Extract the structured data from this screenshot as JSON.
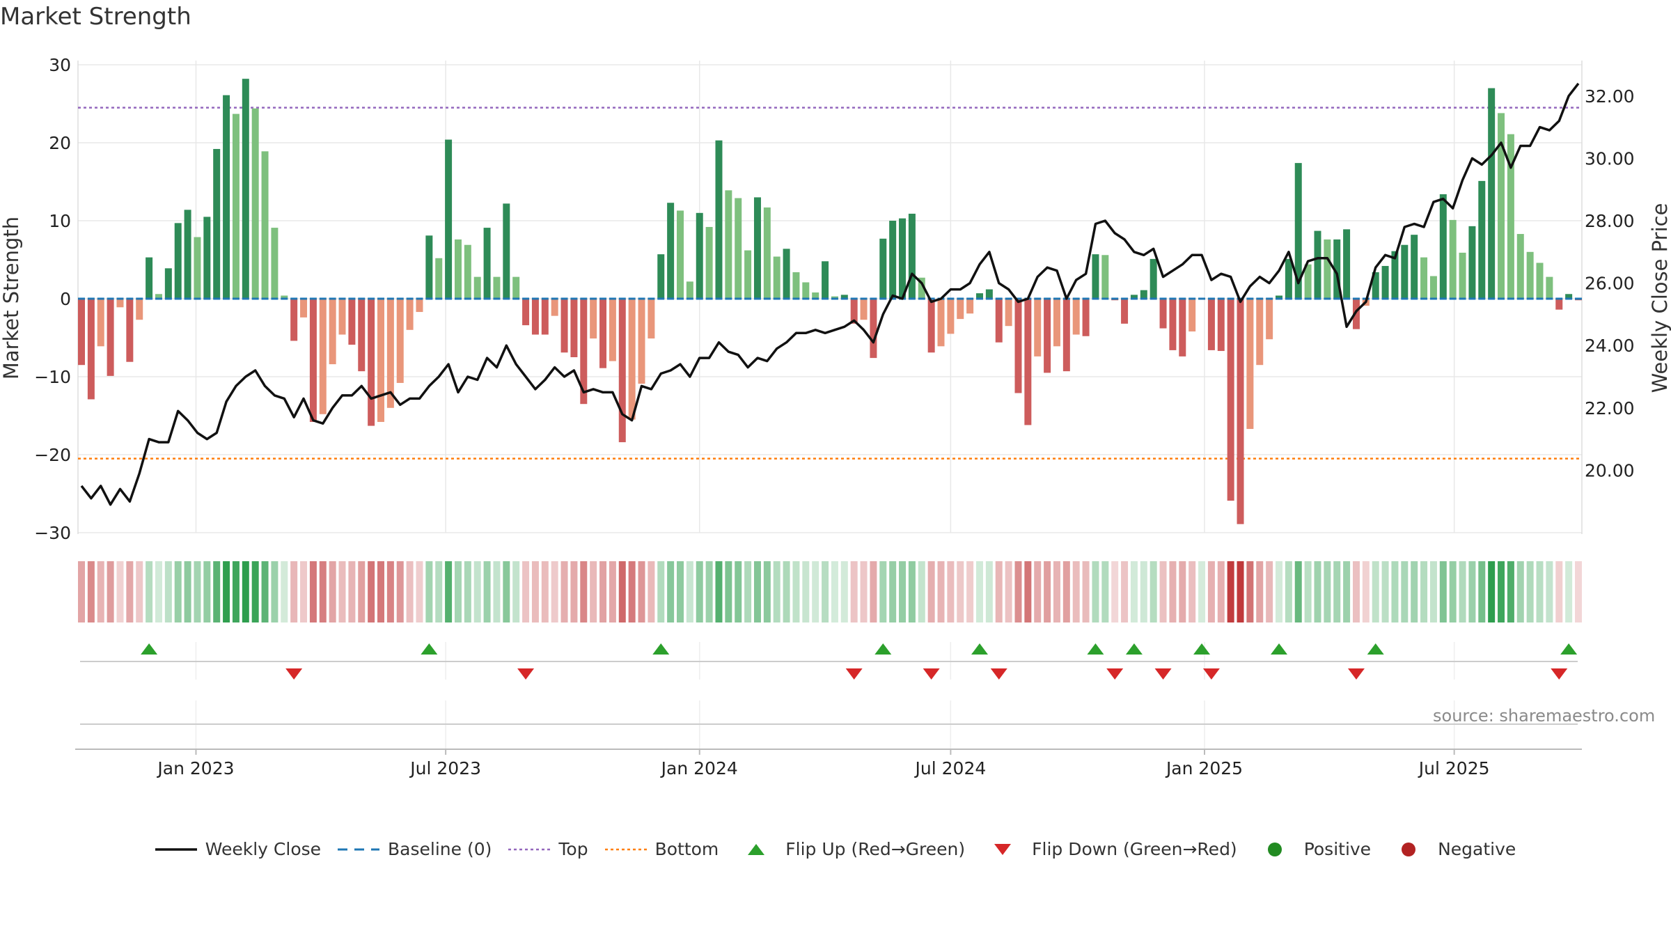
{
  "chart_data": {
    "type": "bar",
    "title": "Market Strength",
    "source_note": "source: sharemaestro.com",
    "y_left_label": "Market Strength",
    "y_right_label": "Weekly Close Price",
    "y_left_range": [
      -30,
      30
    ],
    "y_left_ticks": [
      30,
      20,
      10,
      0,
      -10,
      -20,
      -30
    ],
    "y_left_tick_labels": [
      "30",
      "20",
      "10",
      "0",
      "−10",
      "−20",
      "−30"
    ],
    "y_right_range": [
      18.0,
      33.0
    ],
    "y_right_ticks": [
      32,
      30,
      28,
      26,
      24,
      22,
      20
    ],
    "y_right_tick_labels": [
      "32.00",
      "30.00",
      "28.00",
      "26.00",
      "24.00",
      "22.00",
      "20.00"
    ],
    "x_axis": {
      "start": "2022-10-10",
      "end": "2025-09-29",
      "tick_dates": [
        "2023-01-01",
        "2023-07-01",
        "2024-01-01",
        "2024-07-01",
        "2025-01-01",
        "2025-07-01"
      ],
      "tick_labels": [
        "Jan 2023",
        "Jul 2023",
        "Jan 2024",
        "Jul 2024",
        "Jan 2025",
        "Jul 2025"
      ]
    },
    "top_threshold": 24.5,
    "bottom_threshold": -20.5,
    "weekly_strength": [
      -8.5,
      -12.9,
      -6.1,
      -9.9,
      -1.1,
      -8.1,
      -2.7,
      5.3,
      0.6,
      3.9,
      9.7,
      11.4,
      7.9,
      10.5,
      19.2,
      26.1,
      23.7,
      28.2,
      24.4,
      18.9,
      9.1,
      0.4,
      -5.4,
      -2.4,
      -15.8,
      -14.8,
      -8.4,
      -4.6,
      -5.9,
      -9.3,
      -16.3,
      -15.8,
      -14.0,
      -10.8,
      -4.0,
      -1.7,
      8.1,
      5.2,
      20.4,
      7.6,
      6.9,
      2.8,
      9.1,
      2.8,
      12.2,
      2.8,
      -3.4,
      -4.6,
      -4.6,
      -2.2,
      -6.9,
      -7.5,
      -13.5,
      -5.1,
      -8.9,
      -8.0,
      -18.4,
      -15.5,
      -10.9,
      -5.1,
      5.7,
      12.3,
      11.3,
      2.2,
      11.0,
      9.2,
      20.3,
      13.9,
      12.9,
      6.2,
      13.0,
      11.7,
      5.4,
      6.4,
      3.4,
      2.1,
      0.8,
      4.8,
      0.3,
      0.5,
      -3.2,
      -2.7,
      -7.6,
      7.7,
      10.0,
      10.3,
      10.9,
      2.7,
      -6.9,
      -6.1,
      -4.5,
      -2.6,
      -1.9,
      0.7,
      1.2,
      -5.6,
      -3.5,
      -12.1,
      -16.2,
      -7.4,
      -9.5,
      -6.1,
      -9.3,
      -4.6,
      -4.8,
      5.7,
      5.6,
      -0.2,
      -3.2,
      0.5,
      1.1,
      5.1,
      -3.8,
      -6.6,
      -7.4,
      -4.2,
      0.1,
      -6.6,
      -6.7,
      -25.9,
      -28.9,
      -16.7,
      -8.5,
      -5.2,
      0.4,
      5.1,
      17.4,
      4.4,
      8.7,
      7.6,
      7.6,
      8.9,
      -3.9,
      -0.9,
      3.4,
      4.2,
      6.1,
      6.9,
      8.2,
      5.3,
      2.9,
      13.4,
      10.1,
      5.9,
      9.3,
      15.1,
      27.0,
      23.8,
      21.1,
      8.3,
      6.0,
      4.6,
      2.8,
      -1.4,
      0.6,
      -0.2
    ],
    "weekly_close": [
      19.5,
      19.1,
      19.5,
      18.9,
      19.4,
      19.0,
      19.9,
      21.0,
      20.9,
      20.9,
      21.9,
      21.6,
      21.2,
      21.0,
      21.2,
      22.2,
      22.7,
      23.0,
      23.2,
      22.7,
      22.4,
      22.3,
      21.7,
      22.3,
      21.6,
      21.5,
      22.0,
      22.4,
      22.4,
      22.7,
      22.3,
      22.4,
      22.5,
      22.1,
      22.3,
      22.3,
      22.7,
      23.0,
      23.4,
      22.5,
      23.0,
      22.9,
      23.6,
      23.3,
      24.0,
      23.4,
      23.0,
      22.6,
      22.9,
      23.3,
      23.0,
      23.2,
      22.5,
      22.6,
      22.5,
      22.5,
      21.8,
      21.6,
      22.7,
      22.6,
      23.1,
      23.2,
      23.4,
      23.0,
      23.6,
      23.6,
      24.1,
      23.8,
      23.7,
      23.3,
      23.6,
      23.5,
      23.9,
      24.1,
      24.4,
      24.4,
      24.5,
      24.4,
      24.5,
      24.6,
      24.8,
      24.5,
      24.1,
      25.0,
      25.6,
      25.5,
      26.3,
      26.0,
      25.4,
      25.5,
      25.8,
      25.8,
      26.0,
      26.6,
      27.0,
      26.0,
      25.8,
      25.4,
      25.5,
      26.2,
      26.5,
      26.4,
      25.5,
      26.1,
      26.3,
      27.9,
      28.0,
      27.6,
      27.4,
      27.0,
      26.9,
      27.1,
      26.2,
      26.4,
      26.6,
      26.9,
      26.9,
      26.1,
      26.3,
      26.2,
      25.4,
      25.9,
      26.2,
      26.0,
      26.4,
      27.0,
      26.0,
      26.7,
      26.8,
      26.8,
      26.3,
      24.6,
      25.1,
      25.4,
      26.5,
      26.9,
      26.8,
      27.8,
      27.9,
      27.8,
      28.6,
      28.7,
      28.4,
      29.3,
      30.0,
      29.8,
      30.1,
      30.5,
      29.7,
      30.4,
      30.4,
      31.0,
      30.9,
      31.2,
      32.0,
      32.4
    ],
    "flip_up_weeks": [
      7,
      36,
      60,
      83,
      93,
      105,
      109,
      116,
      124,
      134,
      154
    ],
    "flip_down_weeks": [
      22,
      46,
      80,
      88,
      95,
      107,
      112,
      117,
      132,
      153
    ],
    "legend": [
      {
        "label": "Weekly Close",
        "marker": "line",
        "color": "#111111"
      },
      {
        "label": "Baseline (0)",
        "marker": "dash",
        "color": "#1f77b4"
      },
      {
        "label": "Top",
        "marker": "dot",
        "color": "#9467bd"
      },
      {
        "label": "Bottom",
        "marker": "dot",
        "color": "#ff7f0e"
      },
      {
        "label": "Flip Up (Red→Green)",
        "marker": "triangle-up",
        "color": "#2ca02c"
      },
      {
        "label": "Flip Down (Green→Red)",
        "marker": "triangle-down",
        "color": "#d62728"
      },
      {
        "label": "Positive",
        "marker": "circle",
        "color": "#228b22"
      },
      {
        "label": "Negative",
        "marker": "circle",
        "color": "#b22222"
      }
    ],
    "colors": {
      "positive_strong": "#2e8b57",
      "positive_light": "#7ec07e",
      "negative_strong": "#cd5c5c",
      "negative_light": "#e9967a",
      "close_line": "#111111",
      "baseline": "#1f77b4",
      "top_line": "#9467bd",
      "bottom_line": "#ff7f0e",
      "flip_up": "#2ca02c",
      "flip_down": "#d62728",
      "grid": "#e8e8e8"
    }
  }
}
